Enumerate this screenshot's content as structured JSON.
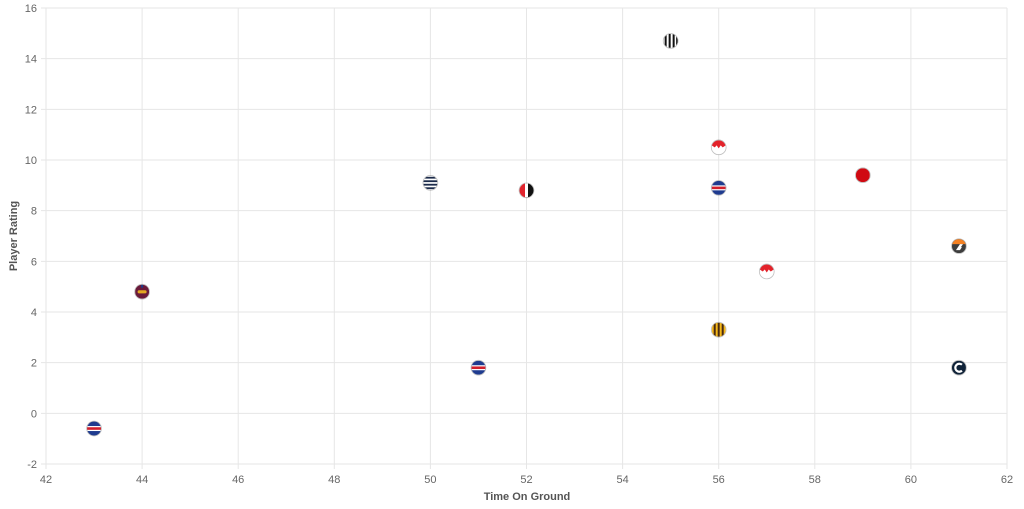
{
  "chart_data": {
    "type": "scatter",
    "xlabel": "Time On Ground",
    "ylabel": "Player Rating",
    "xlim": [
      42,
      62
    ],
    "ylim": [
      -2,
      16
    ],
    "x_ticks": [
      "42",
      "44",
      "46",
      "48",
      "50",
      "52",
      "54",
      "56",
      "58",
      "60",
      "62"
    ],
    "y_ticks": [
      "-2",
      "0",
      "2",
      "4",
      "6",
      "8",
      "10",
      "12",
      "14",
      "16"
    ],
    "grid": true,
    "points": [
      {
        "x": 43,
        "y": -0.6,
        "icon": "blue-red-stripes-icon"
      },
      {
        "x": 44,
        "y": 4.8,
        "icon": "maroon-lion-icon"
      },
      {
        "x": 50,
        "y": 9.1,
        "icon": "navy-white-hoops-icon"
      },
      {
        "x": 51,
        "y": 1.8,
        "icon": "blue-red-stripes-icon"
      },
      {
        "x": 52,
        "y": 8.8,
        "icon": "red-black-split-icon"
      },
      {
        "x": 55,
        "y": 14.7,
        "icon": "black-white-stripes-icon"
      },
      {
        "x": 56,
        "y": 10.5,
        "icon": "red-white-chevron-icon"
      },
      {
        "x": 56,
        "y": 8.9,
        "icon": "blue-red-stripes-icon"
      },
      {
        "x": 56,
        "y": 3.3,
        "icon": "brown-gold-stripes-icon"
      },
      {
        "x": 57,
        "y": 5.6,
        "icon": "red-white-chevron-icon"
      },
      {
        "x": 59,
        "y": 9.4,
        "icon": "red-solid-icon"
      },
      {
        "x": 61,
        "y": 6.6,
        "icon": "orange-charcoal-g-icon"
      },
      {
        "x": 61,
        "y": 1.8,
        "icon": "navy-c-icon"
      }
    ]
  }
}
